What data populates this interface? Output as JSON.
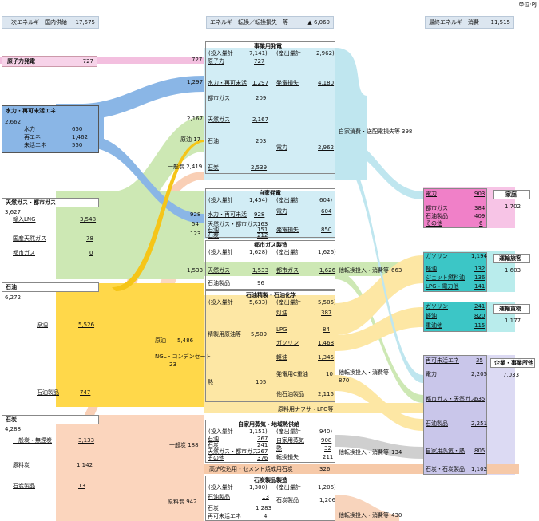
{
  "unit": "単位:PJ",
  "header": {
    "primary": {
      "label": "一次エネルギー国内供給",
      "value": "17,575"
    },
    "conversion": {
      "label": "エネルギー転換／転換損失　等",
      "value": "▲ 6,060"
    },
    "final": {
      "label": "最終エネルギー消費",
      "value": "11,515"
    }
  },
  "primary": {
    "nuclear": {
      "label": "原子力発電",
      "value": "727"
    },
    "hydro": {
      "label": "水力・再可未活エネ",
      "total": "2,662",
      "items": [
        {
          "label": "水力",
          "value": "650"
        },
        {
          "label": "再エネ",
          "value": "1,462"
        },
        {
          "label": "未活エネ",
          "value": "550"
        }
      ]
    },
    "gas": {
      "label": "天然ガス・都市ガス",
      "total": "3,627",
      "items": [
        {
          "label": "輸入LNG",
          "value": "3,548"
        },
        {
          "label": "国産天然ガス",
          "value": "78"
        },
        {
          "label": "都市ガス",
          "value": "0"
        }
      ]
    },
    "oil": {
      "label": "石油",
      "total": "6,272",
      "items": [
        {
          "label": "原油",
          "value": "5,526"
        },
        {
          "label": "石油製品",
          "value": "747"
        }
      ]
    },
    "coal": {
      "label": "石炭",
      "total": "4,288",
      "items": [
        {
          "label": "一般炭・無煙炭",
          "value": "3,133"
        },
        {
          "label": "原料炭",
          "value": "1,142"
        },
        {
          "label": "石炭製品",
          "value": "13"
        }
      ]
    }
  },
  "flow_labels": {
    "f727": "727",
    "f1297": "1,297",
    "f2167": "2,167",
    "oil17": "原油 17",
    "coal2419": "一般炭 2,419",
    "f928": "928",
    "f54": "54",
    "f123": "123",
    "f1533": "1,533",
    "crude5486": "原油　　5,486",
    "ngl": "NGL・コンデンセート",
    "ngl_val": "23",
    "coal188": "一般炭 188",
    "coking942": "原料炭 942"
  },
  "conversion": {
    "utility": {
      "title": "事業用発電",
      "in_label": "(投入量計",
      "in_value": "7,141)",
      "out_label": "(産出量計",
      "out_value": "2,962)",
      "inputs": [
        {
          "label": "原子力",
          "value": "727"
        },
        {
          "label": "水力・再可未活",
          "value": "1,297"
        },
        {
          "label": "都市ガス",
          "value": "209"
        },
        {
          "label": "天然ガス",
          "value": "2,167"
        },
        {
          "label": "石油",
          "value": "203"
        },
        {
          "label": "石炭",
          "value": "2,539"
        }
      ],
      "outputs": [
        {
          "label": "発電損失",
          "value": "4,180"
        },
        {
          "label": "電力",
          "value": "2,962"
        }
      ]
    },
    "self_loss": {
      "label": "自家消費・送配電損失等",
      "value": "398"
    },
    "auto": {
      "title": "自家発電",
      "in_label": "(投入量計",
      "in_value": "1,454)",
      "out_label": "(産出量計",
      "out_value": "604)",
      "inputs": [
        {
          "label": "水力・再可未活",
          "value": "928"
        },
        {
          "label": "天然ガス・都市ガス",
          "value": "163"
        },
        {
          "label": "石油",
          "value": "151"
        },
        {
          "label": "石炭",
          "value": "212"
        }
      ],
      "outputs": [
        {
          "label": "電力",
          "value": "604"
        },
        {
          "label": "発電損失",
          "value": "850"
        }
      ]
    },
    "citygas": {
      "title": "都市ガス製造",
      "in_label": "(投入量計",
      "in_value": "1,628)",
      "out_label": "(産出量計",
      "out_value": "1,626)",
      "inputs": [
        {
          "label": "天然ガス",
          "value": "1,533"
        },
        {
          "label": "石油製品",
          "value": "96"
        }
      ],
      "outputs": [
        {
          "label": "都市ガス",
          "value": "1,626"
        }
      ]
    },
    "other1": {
      "label": "他転換投入・消費等",
      "value": "663"
    },
    "refinery": {
      "title": "石油精製・石油化学",
      "in_label": "(投入量計",
      "in_value": "5,633)",
      "out_label": "(産出量計",
      "out_value": "5,505)",
      "inputs": [
        {
          "label": "精製用原油等",
          "value": "5,509"
        },
        {
          "label": "熱",
          "value": "105"
        }
      ],
      "outputs": [
        {
          "label": "灯油",
          "value": "387"
        },
        {
          "label": "LPG",
          "value": "84"
        },
        {
          "label": "ガソリン",
          "value": "1,468"
        },
        {
          "label": "軽油",
          "value": "1,345"
        },
        {
          "label": "発電用C重油",
          "value": "10"
        },
        {
          "label": "他石油製品",
          "value": "2,115"
        }
      ]
    },
    "other2": {
      "label": "他転換投入・消費等",
      "value": "870"
    },
    "naphtha": "原料用ナフサ・LPG等",
    "heat": {
      "title": "自家用蒸気・地域熱供給",
      "in_label": "(投入量計",
      "in_value": "1,151)",
      "out_label": "(産出量計",
      "out_value": "940)",
      "inputs": [
        {
          "label": "石油",
          "value": "267"
        },
        {
          "label": "石炭",
          "value": "241"
        },
        {
          "label": "天然ガス・都市ガス",
          "value": "267"
        },
        {
          "label": "その他",
          "value": "376"
        }
      ],
      "outputs": [
        {
          "label": "自家用蒸気",
          "value": "908"
        },
        {
          "label": "熱",
          "value": "32"
        },
        {
          "label": "転換損失",
          "value": "211"
        }
      ]
    },
    "other3": {
      "label": "他転換投入・消費等",
      "value": "134"
    },
    "blast": {
      "label": "高炉吹込用・セメント焼成用石炭",
      "value": "326"
    },
    "coke": {
      "title": "石炭製品製造",
      "in_label": "(投入量計",
      "in_value": "1,300)",
      "out_label": "(産出量計",
      "out_value": "1,206)",
      "inputs": [
        {
          "label": "石油製品",
          "value": "13"
        },
        {
          "label": "石炭",
          "value": "1,283"
        },
        {
          "label": "再可未活エネ",
          "value": "4"
        }
      ],
      "outputs": [
        {
          "label": "石炭製品",
          "value": "1,206"
        }
      ]
    },
    "other4": {
      "label": "他転換投入・消費等",
      "value": "430"
    }
  },
  "final": {
    "household": {
      "title": "家庭",
      "total": "1,702",
      "items": [
        {
          "label": "電力",
          "value": "903"
        },
        {
          "label": "都市ガス",
          "value": "384"
        },
        {
          "label": "石油製品",
          "value": "409"
        },
        {
          "label": "その他",
          "value": "6"
        }
      ]
    },
    "passenger": {
      "title": "運輸旅客",
      "total": "1,603",
      "items": [
        {
          "label": "ガソリン",
          "value": "1,194"
        },
        {
          "label": "軽油",
          "value": "132"
        },
        {
          "label": "ジェット燃料油",
          "value": "136"
        },
        {
          "label": "LPG・電力他",
          "value": "141"
        }
      ]
    },
    "freight": {
      "title": "運輸貨物",
      "total": "1,177",
      "items": [
        {
          "label": "ガソリン",
          "value": "241"
        },
        {
          "label": "軽油",
          "value": "820"
        },
        {
          "label": "重油他",
          "value": "115"
        }
      ]
    },
    "business": {
      "title": "企業・事業所他",
      "total": "7,033",
      "items": [
        {
          "label": "再可未活エネ",
          "value": "35"
        },
        {
          "label": "電力",
          "value": "2,205"
        },
        {
          "label": "都市ガス・天然ガス",
          "value": "635"
        },
        {
          "label": "石油製品",
          "value": "2,251"
        },
        {
          "label": "自家用蒸気・熱",
          "value": "805"
        },
        {
          "label": "石炭・石炭製品",
          "value": "1,102"
        }
      ]
    }
  },
  "colors": {
    "nuclear": "#f3bfdf",
    "hydro": "#8ab6e6",
    "gas": "#cde8b4",
    "oil": "#ffd84a",
    "coal": "#f8c7a8",
    "elec": "#bfe6ef",
    "steam": "#cfcfcf",
    "household": "#f080c8",
    "transport": "#3cc6c6",
    "business": "#c9c6ea",
    "header": "#dce6f0"
  }
}
